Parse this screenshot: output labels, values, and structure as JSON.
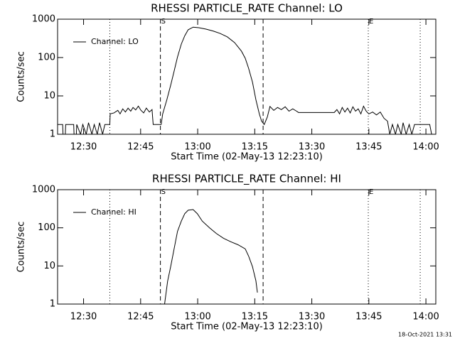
{
  "chart_data": [
    {
      "type": "line",
      "title": "RHESSI PARTICLE_RATE Channel: LO",
      "xlabel": "Start Time (02-May-13 12:23:10)",
      "ylabel": "Counts/sec",
      "x": [
        743.2,
        744.5,
        744.6,
        745.2,
        745.3,
        747.4,
        747.5,
        748.1,
        748.2,
        749.2,
        749.8,
        750.7,
        751.3,
        752.2,
        752.8,
        753.6,
        754.2,
        755,
        755.6,
        756.9,
        757,
        758,
        759,
        759.6,
        760.3,
        761,
        761.7,
        762.4,
        763,
        763.7,
        764.4,
        765.1,
        765.8,
        766.5,
        767.3,
        768,
        768.3,
        770.4,
        770.8,
        771.9,
        772.9,
        773.8,
        774.7,
        775.7,
        776.6,
        777.5,
        778.8,
        780.3,
        782.2,
        784.1,
        785.9,
        787.8,
        789.7,
        791.5,
        792.5,
        793.4,
        794.4,
        795.3,
        796.2,
        796.8,
        797.5,
        798.3,
        799,
        800,
        801,
        802,
        803,
        804,
        805,
        806,
        806.5,
        815.9,
        816.6,
        817.3,
        818,
        818.7,
        819.4,
        820.1,
        820.8,
        821.5,
        822.2,
        822.9,
        823.6,
        824.3,
        825,
        826,
        827,
        828,
        829,
        829.9,
        830.5,
        831.2,
        832,
        832.6,
        833.5,
        834,
        834.8,
        835.6,
        836.3,
        837,
        838.3,
        841,
        841.5,
        842.6
      ],
      "series": [
        {
          "name": "Channel: LO",
          "color": "#000000",
          "values": [
            1.8,
            1.8,
            1,
            1,
            1.8,
            1.8,
            1,
            1,
            1.8,
            1,
            1.8,
            1,
            2,
            1,
            1.8,
            1,
            2,
            1,
            1.8,
            1.8,
            3.4,
            3.6,
            4.2,
            3.4,
            4.6,
            3.8,
            4.8,
            4,
            5,
            4.3,
            5.4,
            4.2,
            3.6,
            4.8,
            3.8,
            4.4,
            1.8,
            1.8,
            3.4,
            8,
            19,
            44,
            104,
            225,
            370,
            530,
            620,
            600,
            550,
            490,
            425,
            345,
            245,
            147,
            96,
            52,
            23,
            8,
            3.4,
            2.2,
            1.8,
            2.8,
            5.3,
            4.2,
            5,
            4.4,
            5.2,
            4,
            4.6,
            4,
            3.7,
            3.7,
            4.4,
            3.4,
            5,
            3.8,
            4.8,
            3.6,
            5.2,
            4,
            4.6,
            3.4,
            5.4,
            4,
            3.4,
            3.8,
            3.2,
            3.8,
            2.6,
            2.2,
            1,
            1.8,
            1,
            1.8,
            1,
            2,
            1,
            1.8,
            1,
            1.8,
            1.8,
            1.8,
            1,
            1
          ]
        }
      ],
      "xlim": [
        743.17,
        842.6
      ],
      "ylim": [
        1,
        1000
      ],
      "log_y": true,
      "legend": "upper left",
      "xticks": [
        {
          "value": 750,
          "label": "12:30"
        },
        {
          "value": 765,
          "label": "12:45"
        },
        {
          "value": 780,
          "label": "13:00"
        },
        {
          "value": 795,
          "label": "13:15"
        },
        {
          "value": 810,
          "label": "13:30"
        },
        {
          "value": 825,
          "label": "13:45"
        },
        {
          "value": 840,
          "label": "14:00"
        }
      ],
      "yticks": [
        1,
        10,
        100,
        1000
      ],
      "dashed_lines": [
        770.2,
        797.2
      ],
      "dotted_lines": [
        756.9,
        824.85,
        838.5
      ],
      "annotations": [
        {
          "text": "S",
          "x": 770.2
        },
        {
          "text": "E",
          "x": 824.85
        }
      ]
    },
    {
      "type": "line",
      "title": "RHESSI PARTICLE_RATE Channel: HI",
      "xlabel": "Start Time (02-May-13 12:23:10)",
      "ylabel": "Counts/sec",
      "x": [
        771.3,
        772.1,
        772.9,
        773.8,
        774.7,
        775.7,
        776.6,
        777.5,
        778.8,
        779.9,
        781.2,
        783.1,
        784.9,
        786.8,
        788.7,
        790.6,
        792.5,
        793.4,
        794.4,
        795.3,
        795.7
      ],
      "series": [
        {
          "name": "Channel: HI",
          "color": "#000000",
          "values": [
            1,
            4,
            9.6,
            28,
            81,
            150,
            235,
            290,
            300,
            235,
            150,
            100,
            71,
            53,
            43,
            36,
            28,
            18,
            9.6,
            4.1,
            2
          ]
        }
      ],
      "xlim": [
        743.17,
        842.6
      ],
      "ylim": [
        1,
        1000
      ],
      "log_y": true,
      "legend": "upper left",
      "xticks": [
        {
          "value": 750,
          "label": "12:30"
        },
        {
          "value": 765,
          "label": "12:45"
        },
        {
          "value": 780,
          "label": "13:00"
        },
        {
          "value": 795,
          "label": "13:15"
        },
        {
          "value": 810,
          "label": "13:30"
        },
        {
          "value": 825,
          "label": "13:45"
        },
        {
          "value": 840,
          "label": "14:00"
        }
      ],
      "yticks": [
        1,
        10,
        100,
        1000
      ],
      "dashed_lines": [
        770.2,
        797.2
      ],
      "dotted_lines": [
        756.9,
        824.85,
        838.5
      ],
      "annotations": [
        {
          "text": "S",
          "x": 770.2
        },
        {
          "text": "E",
          "x": 824.85
        }
      ]
    }
  ],
  "footer": "18-Oct-2021 13:31"
}
